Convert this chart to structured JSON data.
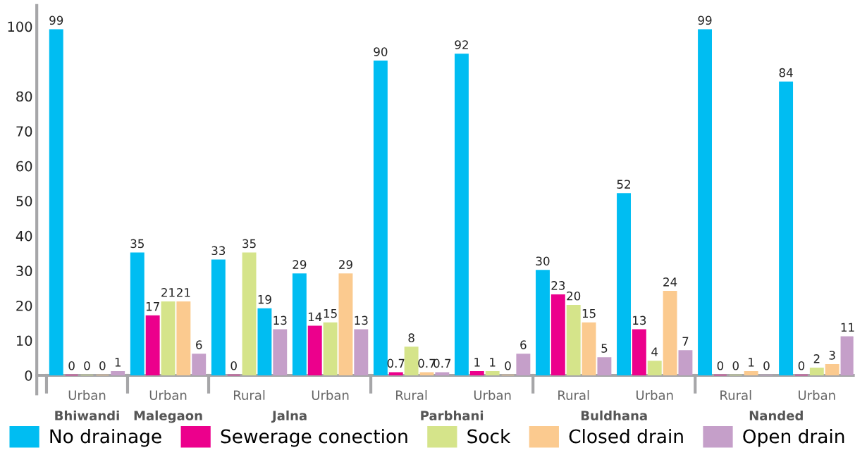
{
  "chart_data": {
    "type": "bar",
    "categories": [
      "Urban",
      "Urban",
      "Rural",
      "Urban",
      "Rural",
      "Urban",
      "Rural",
      "Urban",
      "Rural",
      "Urban"
    ],
    "annotations": [
      "Bhiwandi",
      "Malegaon",
      "Jalna",
      "Parbhani",
      "Buldhana",
      "Nanded"
    ],
    "series": [
      {
        "name": "No drainage",
        "color": "#00bdf2",
        "values": [
          99,
          35,
          33,
          29,
          90,
          92,
          30,
          52,
          99,
          84
        ]
      },
      {
        "name": "Sewerage conection",
        "color": "#ec008c",
        "values": [
          0,
          17,
          0,
          14,
          0.7,
          1,
          23,
          13,
          0,
          0
        ]
      },
      {
        "name": "Sock",
        "color": "#d5e48a",
        "values": [
          0,
          21,
          35,
          15,
          8,
          1,
          20,
          4,
          0,
          2
        ]
      },
      {
        "name": "Closed drain",
        "color": "#fbca8f",
        "colors": [
          "#fbca8f",
          "#fbca8f",
          "#00bdf2",
          "#fbca8f",
          "#fbca8f",
          "#fbca8f",
          "#fbca8f",
          "#fbca8f",
          "#fbca8f",
          "#fbca8f"
        ],
        "values": [
          0,
          21,
          19,
          29,
          0.7,
          0,
          15,
          24,
          1,
          3
        ]
      },
      {
        "name": "Open drain",
        "color": "#c59fc9",
        "values": [
          1,
          6,
          13,
          13,
          0.7,
          6,
          5,
          7,
          0,
          11
        ]
      }
    ],
    "ylim": [
      0,
      106
    ],
    "yticks": [
      0,
      10,
      20,
      30,
      40,
      50,
      60,
      70,
      80,
      100
    ],
    "grid": false,
    "legend": "bottom",
    "data_labels": true
  }
}
